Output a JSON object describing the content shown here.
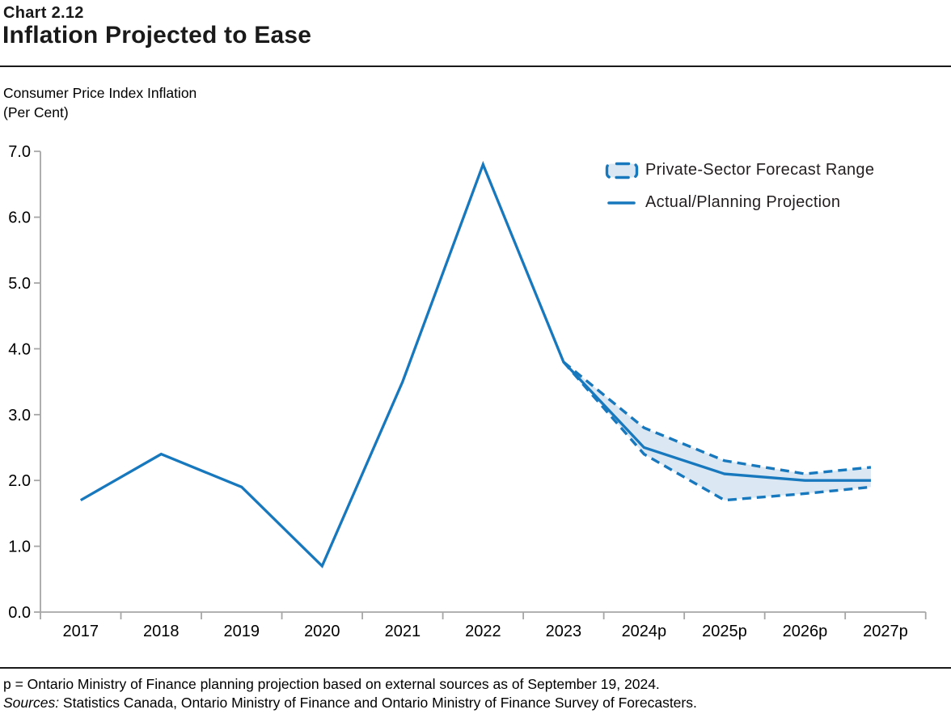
{
  "header": {
    "chart_number": "Chart 2.12",
    "title": "Inflation Projected to Ease"
  },
  "subtitle": {
    "line1": "Consumer Price Index Inflation",
    "line2": "(Per Cent)"
  },
  "legend": [
    {
      "label": "Private-Sector Forecast Range",
      "type": "range"
    },
    {
      "label": "Actual/Planning Projection",
      "type": "line"
    }
  ],
  "footnotes": {
    "note": "p = Ontario Ministry of Finance planning projection based on external sources as of September 19, 2024.",
    "sources_label": "Sources:",
    "sources_text": " Statistics Canada, Ontario Ministry of Finance and Ontario Ministry of Finance Survey of Forecasters."
  },
  "colors": {
    "line": "#1878be",
    "band_fill": "#dbe8f4",
    "axis": "#a6a6a6",
    "text": "#000000"
  },
  "chart_data": {
    "type": "line",
    "title": "Inflation Projected to Ease",
    "ylabel": "Consumer Price Index Inflation (Per Cent)",
    "categories": [
      "2017",
      "2018",
      "2019",
      "2020",
      "2021",
      "2022",
      "2023",
      "2024p",
      "2025p",
      "2026p",
      "2027p"
    ],
    "yticks": [
      "0.0",
      "1.0",
      "2.0",
      "3.0",
      "4.0",
      "5.0",
      "6.0",
      "7.0"
    ],
    "ylim": [
      0.0,
      7.0
    ],
    "ytick_step": 1.0,
    "grid": false,
    "legend_position": "top-right",
    "series": [
      {
        "name": "Actual/Planning Projection",
        "style": "solid",
        "start_index": 0,
        "values": [
          1.7,
          2.4,
          1.9,
          0.7,
          3.5,
          6.8,
          3.8,
          2.5,
          2.1,
          2.0,
          2.0
        ]
      },
      {
        "name": "Private-Sector Forecast Range Upper",
        "style": "dashed",
        "start_index": 6,
        "values": [
          3.8,
          2.8,
          2.3,
          2.1,
          2.2
        ]
      },
      {
        "name": "Private-Sector Forecast Range Lower",
        "style": "dashed",
        "start_index": 6,
        "values": [
          3.8,
          2.4,
          1.7,
          1.8,
          1.9
        ]
      }
    ]
  }
}
